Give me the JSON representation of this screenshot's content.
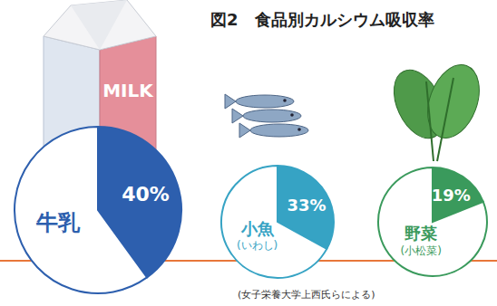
{
  "title": "図2　食品別カルシウム吸収率",
  "source": "(女子栄養大学上西氏らによる)",
  "chart_data": [
    {
      "type": "pie",
      "title": "牛乳",
      "illustration_text": "MILK",
      "values": [
        40,
        60
      ],
      "value_labels": [
        "40%",
        null
      ],
      "colors": [
        "#2d5fae",
        "#ffffff"
      ]
    },
    {
      "type": "pie",
      "title": "小魚",
      "subtitle": "(いわし)",
      "values": [
        33,
        67
      ],
      "value_labels": [
        "33%",
        null
      ],
      "colors": [
        "#36a3c4",
        "#ffffff"
      ]
    },
    {
      "type": "pie",
      "title": "野菜",
      "subtitle": "(小松菜)",
      "values": [
        19,
        81
      ],
      "value_labels": [
        "19%",
        null
      ],
      "colors": [
        "#3a9a5c",
        "#ffffff"
      ]
    }
  ]
}
